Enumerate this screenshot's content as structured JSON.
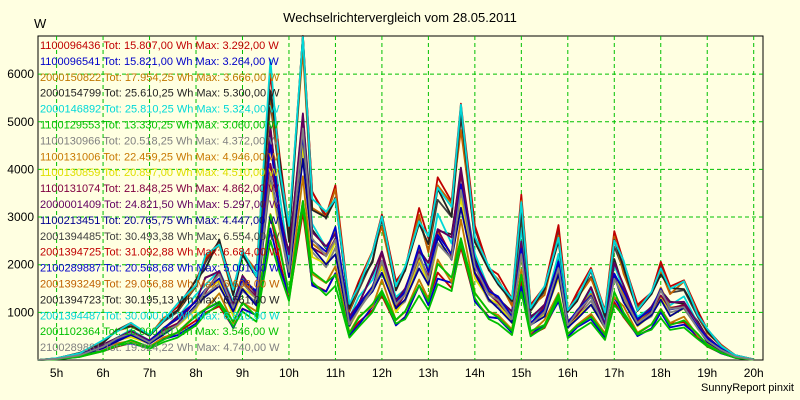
{
  "chart_data": {
    "type": "line",
    "title": "Wechselrichtervergleich vom 28.05.2011",
    "ylabel": "W",
    "xlabel": "",
    "x_ticks": [
      "5h",
      "6h",
      "7h",
      "8h",
      "9h",
      "10h",
      "11h",
      "12h",
      "13h",
      "14h",
      "15h",
      "16h",
      "17h",
      "18h",
      "19h",
      "20h"
    ],
    "xlim": [
      4.6,
      20.2
    ],
    "ylim": [
      0,
      6800
    ],
    "y_ticks": [
      1000,
      2000,
      3000,
      4000,
      5000,
      6000
    ],
    "grid": true,
    "legend_position": "top-left",
    "footer": "SunnyReport pinxit",
    "legend": [
      {
        "text": "1100096436 Tot: 15.807,00 Wh Max: 3.292,00 W",
        "color": "#c00000"
      },
      {
        "text": "1100096541 Tot: 15.821,00 Wh Max: 3.264,00 W",
        "color": "#0000c8"
      },
      {
        "text": "2000150822 Tot: 17.954,25 Wh Max: 3.666,00 W",
        "color": "#c07800"
      },
      {
        "text": "2000154799 Tot: 25.610,25 Wh Max: 5.300,00 W",
        "color": "#222222"
      },
      {
        "text": "2000146892 Tot: 25.810,25 Wh Max: 5.324,00 W",
        "color": "#00d8d8"
      },
      {
        "text": "1100129553 Tot: 13.330,25 Wh Max: 3.060,00 W",
        "color": "#00c000"
      },
      {
        "text": "1100130966 Tot: 20.518,25 Wh Max: 4.372,00 W",
        "color": "#808080"
      },
      {
        "text": "1100131006 Tot: 22.459,25 Wh Max: 4.946,00 W",
        "color": "#c87800"
      },
      {
        "text": "1100130859 Tot: 20.897,00 Wh Max: 4.510,00 W",
        "color": "#e0e000"
      },
      {
        "text": "1100131074 Tot: 21.848,25 Wh Max: 4.862,00 W",
        "color": "#800040"
      },
      {
        "text": "2000001409 Tot: 24.821,50 Wh Max: 5.297,00 W",
        "color": "#600060"
      },
      {
        "text": "1100213451 Tot: 20.765,75 Wh Max: 4.447,00 W",
        "color": "#000090"
      },
      {
        "text": "2001394485 Tot: 30.493,38 Wh Max: 6.554,00 W",
        "color": "#404040"
      },
      {
        "text": "2001394725 Tot: 31.092,88 Wh Max: 6.684,00 W",
        "color": "#c00000"
      },
      {
        "text": "2100289887 Tot: 20.568,68 Wh Max: 5.001,00 W",
        "color": "#0000c8"
      },
      {
        "text": "2001393249 Tot: 29.056,88 Wh Max: 6.608,00 W",
        "color": "#c06000"
      },
      {
        "text": "2001394723 Tot: 30.195,13 Wh Max: 6.561,00 W",
        "color": "#222222"
      },
      {
        "text": "2001394487 Tot: 30.000,00 Wh Max: 6.810,00 W",
        "color": "#00d8d8"
      },
      {
        "text": "2001102364 Tot: 16.000,00 Wh Max: 3.546,00 W",
        "color": "#00c000"
      },
      {
        "text": "2100289881 Tot: 19.924,22 Wh Max: 4.740,00 W",
        "color": "#808080"
      }
    ],
    "x": [
      4.6,
      5.0,
      5.5,
      6.0,
      6.3,
      6.6,
      7.0,
      7.3,
      7.6,
      8.0,
      8.2,
      8.5,
      8.8,
      9.0,
      9.3,
      9.6,
      9.8,
      10.0,
      10.3,
      10.5,
      10.8,
      11.0,
      11.3,
      11.5,
      11.8,
      12.0,
      12.3,
      12.5,
      12.8,
      13.0,
      13.2,
      13.5,
      13.7,
      14.0,
      14.3,
      14.5,
      14.8,
      15.0,
      15.2,
      15.5,
      15.8,
      16.0,
      16.2,
      16.5,
      16.8,
      17.0,
      17.2,
      17.5,
      17.8,
      18.0,
      18.2,
      18.5,
      18.8,
      19.0,
      19.3,
      19.6,
      20.0
    ],
    "profile": [
      0,
      30,
      120,
      320,
      500,
      620,
      420,
      700,
      900,
      1350,
      1700,
      2000,
      1200,
      1800,
      1500,
      4800,
      3400,
      2200,
      5500,
      2800,
      2400,
      2900,
      900,
      1300,
      1800,
      2400,
      1300,
      1500,
      2500,
      2000,
      3000,
      2600,
      4200,
      2200,
      1500,
      1400,
      1000,
      2700,
      900,
      1200,
      2200,
      800,
      1100,
      1500,
      800,
      2100,
      1600,
      900,
      1100,
      1600,
      1200,
      1300,
      800,
      500,
      250,
      80,
      10
    ],
    "series": [
      {
        "name": "1100096436",
        "max": 3292
      },
      {
        "name": "1100096541",
        "max": 3264
      },
      {
        "name": "2000150822",
        "max": 3666
      },
      {
        "name": "2000154799",
        "max": 5300
      },
      {
        "name": "2000146892",
        "max": 5324
      },
      {
        "name": "1100129553",
        "max": 3060
      },
      {
        "name": "1100130966",
        "max": 4372
      },
      {
        "name": "1100131006",
        "max": 4946
      },
      {
        "name": "1100130859",
        "max": 4510
      },
      {
        "name": "1100131074",
        "max": 4862
      },
      {
        "name": "2000001409",
        "max": 5297
      },
      {
        "name": "1100213451",
        "max": 4447
      },
      {
        "name": "2001394485",
        "max": 6554
      },
      {
        "name": "2001394725",
        "max": 6684
      },
      {
        "name": "2100289887",
        "max": 5001
      },
      {
        "name": "2001393249",
        "max": 6608
      },
      {
        "name": "2001394723",
        "max": 6561
      },
      {
        "name": "2001394487",
        "max": 6810
      },
      {
        "name": "2001102364",
        "max": 3546
      },
      {
        "name": "2100289881",
        "max": 4740
      }
    ]
  }
}
